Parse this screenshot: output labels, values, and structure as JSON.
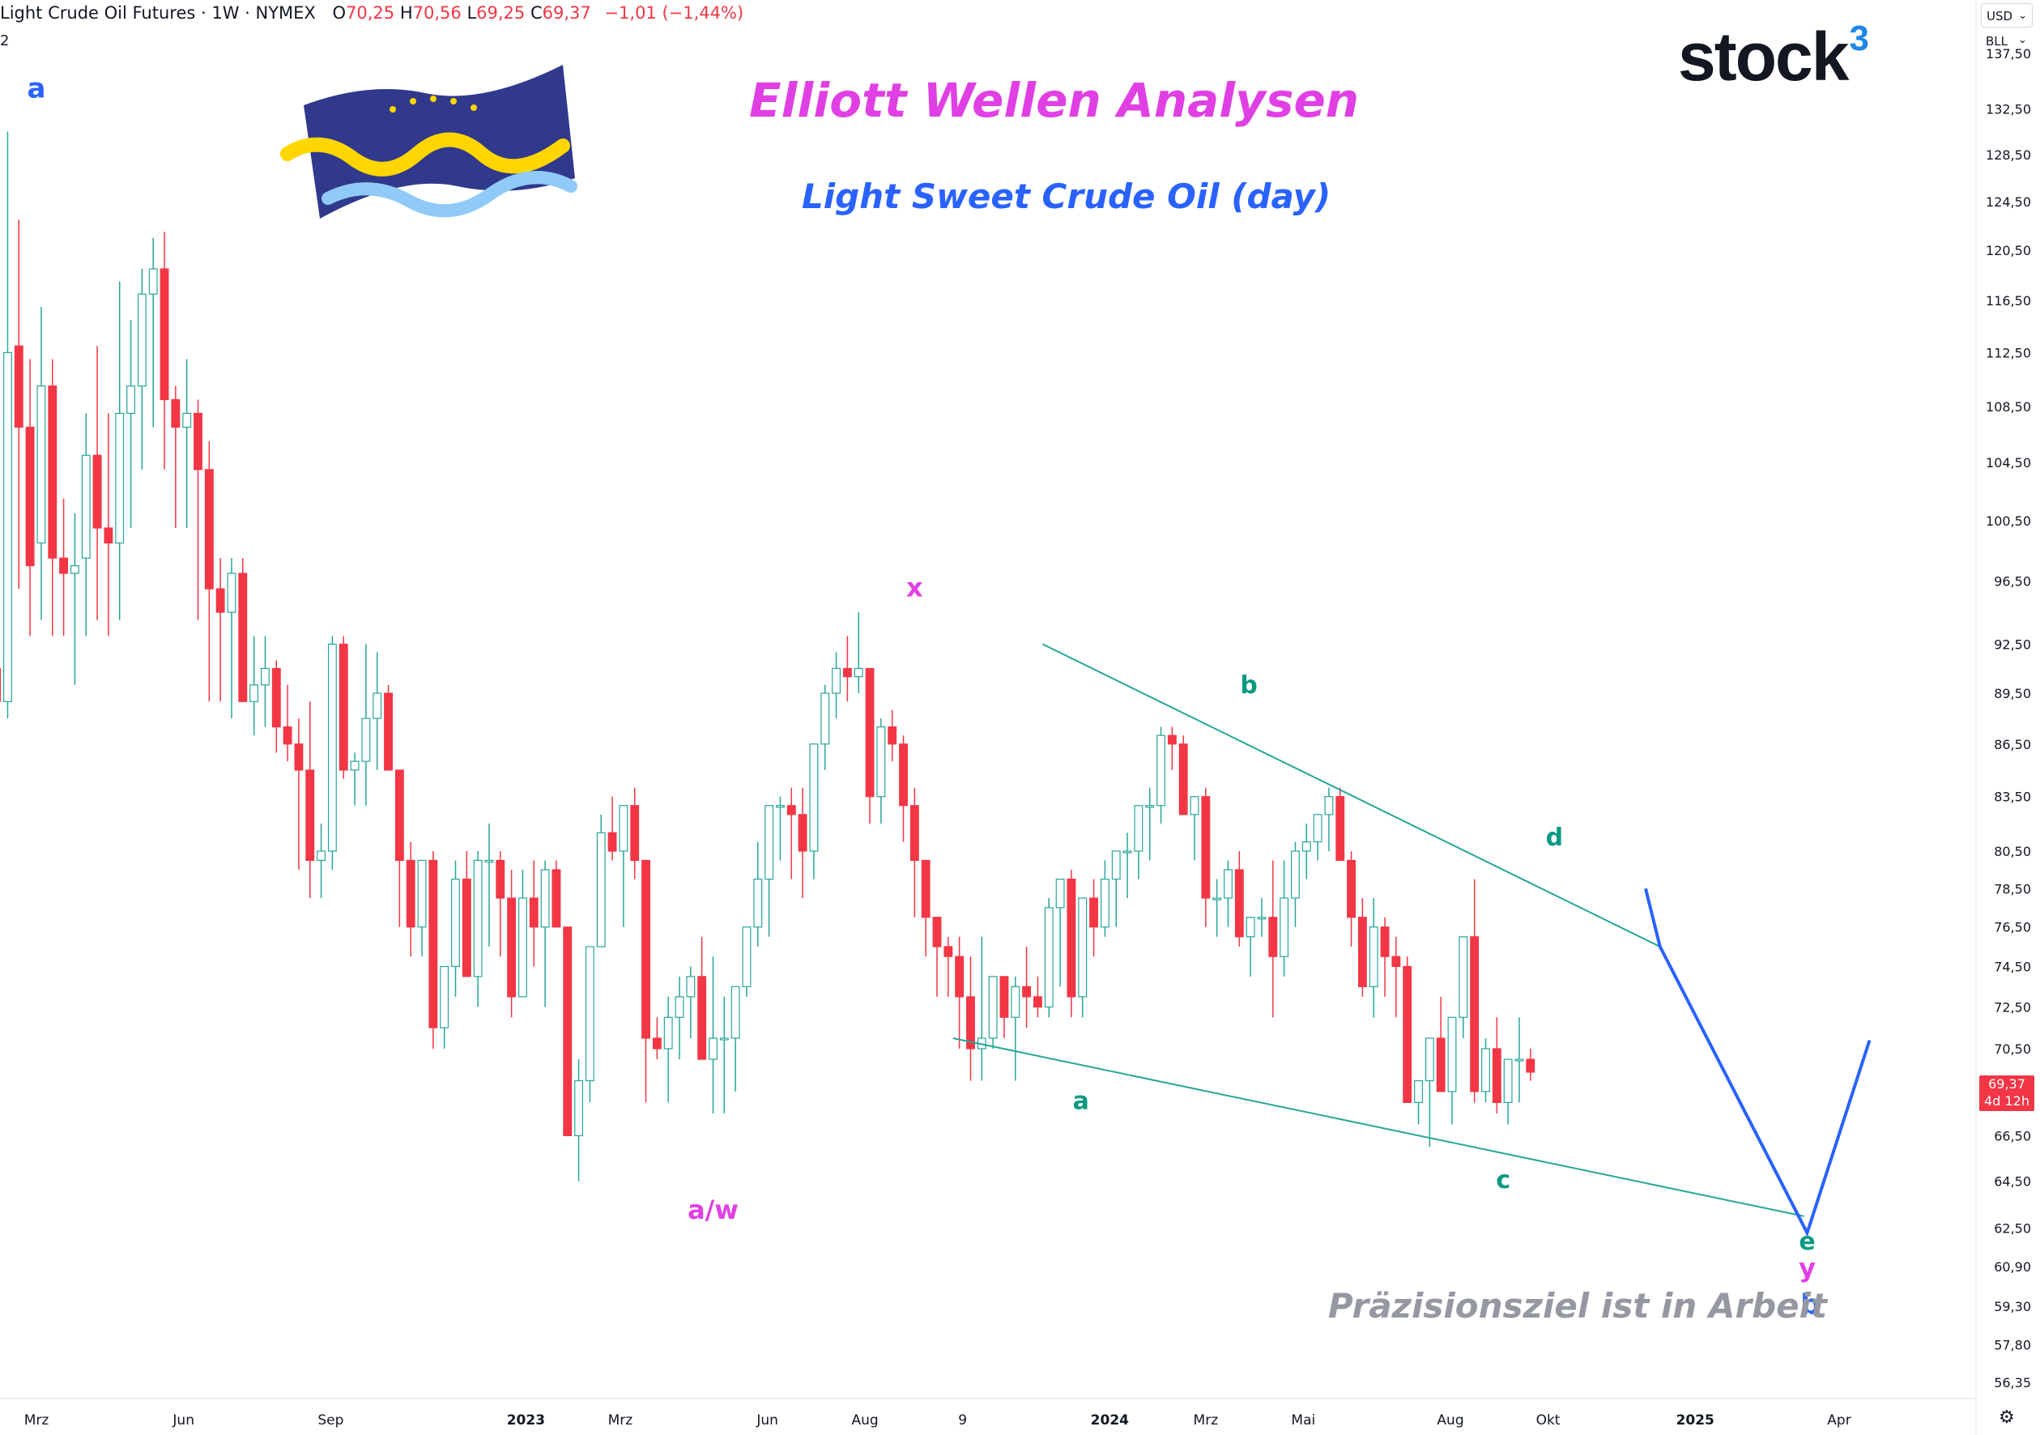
{
  "header": {
    "symbol": "Light Crude Oil Futures · 1W · NYMEX",
    "open_label": "O",
    "open": "70,25",
    "high_label": "H",
    "high": "70,56",
    "low_label": "L",
    "low": "69,25",
    "close_label": "C",
    "close": "69,37",
    "change": "−1,01 (−1,44%)",
    "row2": "2"
  },
  "titles": {
    "main": "Elliott Wellen Analysen",
    "sub": "Light Sweet Crude Oil (day)",
    "watermark": "Präzisionsziel ist in Arbeit"
  },
  "brand": {
    "name": "stock",
    "sup": "3"
  },
  "price_axis": {
    "currency": "USD",
    "unit": "BLL",
    "last_price": "69,37",
    "countdown": "4d 12h"
  },
  "colors": {
    "up": "#26a69a",
    "down": "#f23645",
    "trend": "#26a69a",
    "projection": "#2962ff",
    "pink": "#e040e3",
    "teal": "#089981"
  },
  "icons": {
    "currency_chevron": "chevron-down-icon",
    "settings": "gear-icon"
  },
  "chart_data": {
    "type": "candlestick",
    "instrument": "Light Crude Oil Futures",
    "interval": "1W",
    "exchange": "NYMEX",
    "y_scale": "log",
    "ylim": [
      55.5,
      141.0
    ],
    "y_ticks": [
      "137,50",
      "132,50",
      "128,50",
      "124,50",
      "120,50",
      "116,50",
      "112,50",
      "108,50",
      "104,50",
      "100,50",
      "96,50",
      "92,50",
      "89,50",
      "86,50",
      "83,50",
      "80,50",
      "78,50",
      "76,50",
      "74,50",
      "72,50",
      "70,50",
      "66,50",
      "64,50",
      "62,50",
      "60,90",
      "59,30",
      "57,80",
      "56,35"
    ],
    "y_tick_values": [
      137.5,
      132.5,
      128.5,
      124.5,
      120.5,
      116.5,
      112.5,
      108.5,
      104.5,
      100.5,
      96.5,
      92.5,
      89.5,
      86.5,
      83.5,
      80.5,
      78.5,
      76.5,
      74.5,
      72.5,
      70.5,
      66.5,
      64.5,
      62.5,
      60.9,
      59.3,
      57.8,
      56.35
    ],
    "x_ticks": [
      {
        "label": "Mrz",
        "date": "2022-03-01"
      },
      {
        "label": "Jun",
        "date": "2022-06-01"
      },
      {
        "label": "Sep",
        "date": "2022-09-01"
      },
      {
        "label": "2023",
        "date": "2023-01-01"
      },
      {
        "label": "Mrz",
        "date": "2023-03-01"
      },
      {
        "label": "Jun",
        "date": "2023-06-01"
      },
      {
        "label": "Aug",
        "date": "2023-08-01"
      },
      {
        "label": "9",
        "date": "2023-10-01"
      },
      {
        "label": "2024",
        "date": "2024-01-01"
      },
      {
        "label": "Mrz",
        "date": "2024-03-01"
      },
      {
        "label": "Mai",
        "date": "2024-05-01"
      },
      {
        "label": "Aug",
        "date": "2024-08-01"
      },
      {
        "label": "Okt",
        "date": "2024-10-01"
      },
      {
        "label": "2025",
        "date": "2025-01-01"
      },
      {
        "label": "Apr",
        "date": "2025-04-01"
      }
    ],
    "candles_start": "2022-02-04",
    "candles_ohlc": [
      [
        91,
        94,
        87,
        89
      ],
      [
        89,
        130.5,
        88,
        112.5
      ],
      [
        113,
        123,
        96,
        107
      ],
      [
        107,
        112,
        93,
        97.5
      ],
      [
        99,
        116,
        94,
        110
      ],
      [
        110,
        112,
        93,
        98
      ],
      [
        98,
        102,
        93,
        97
      ],
      [
        97,
        101,
        90,
        97.5
      ],
      [
        98,
        108,
        93,
        105
      ],
      [
        105,
        113,
        94,
        100
      ],
      [
        100,
        108,
        93,
        99
      ],
      [
        99,
        118,
        94,
        108
      ],
      [
        108,
        115,
        100,
        110
      ],
      [
        110,
        119,
        104,
        117
      ],
      [
        117,
        121.5,
        107,
        119
      ],
      [
        119,
        122,
        104,
        109
      ],
      [
        109,
        110,
        100,
        107
      ],
      [
        107,
        112,
        100,
        108
      ],
      [
        108,
        109,
        94,
        104
      ],
      [
        104,
        106,
        89,
        96
      ],
      [
        96,
        98,
        89,
        94.5
      ],
      [
        94.5,
        98,
        88,
        97
      ],
      [
        97,
        98,
        89,
        89
      ],
      [
        89,
        93,
        87,
        90
      ],
      [
        90,
        93,
        87.5,
        91
      ],
      [
        91,
        91.5,
        86,
        87.5
      ],
      [
        87.5,
        90,
        85.5,
        86.5
      ],
      [
        86.5,
        88,
        79.5,
        85
      ],
      [
        85,
        89,
        78,
        80
      ],
      [
        80,
        82,
        78,
        80.5
      ],
      [
        80.5,
        93,
        79.5,
        92.5
      ],
      [
        92.5,
        93,
        84.5,
        85
      ],
      [
        85,
        86,
        83,
        85.5
      ],
      [
        85.5,
        92.5,
        83,
        88
      ],
      [
        88,
        92,
        85,
        89.5
      ],
      [
        89.5,
        90,
        85,
        85
      ],
      [
        85,
        85,
        76.5,
        80
      ],
      [
        80,
        81,
        75,
        76.5
      ],
      [
        76.5,
        80,
        75,
        80
      ],
      [
        80,
        80.5,
        70.5,
        71.5
      ],
      [
        71.5,
        74,
        70.5,
        74.5
      ],
      [
        74.5,
        80,
        73,
        79
      ],
      [
        79,
        80.5,
        75,
        74
      ],
      [
        74,
        80.5,
        72.5,
        80
      ],
      [
        80,
        82,
        75.5,
        80
      ],
      [
        80,
        80.5,
        75,
        78
      ],
      [
        78,
        79.5,
        72,
        73
      ],
      [
        73,
        79.5,
        73,
        78
      ],
      [
        78,
        80,
        74.5,
        76.5
      ],
      [
        76.5,
        80,
        72.5,
        79.5
      ],
      [
        79.5,
        80,
        76.5,
        76.5
      ],
      [
        76.5,
        76.5,
        67.5,
        66.5
      ],
      [
        66.5,
        70,
        64.5,
        69
      ],
      [
        69,
        75,
        68,
        75.5
      ],
      [
        75.5,
        82.5,
        76,
        81.5
      ],
      [
        81.5,
        83.5,
        80,
        80.5
      ],
      [
        80.5,
        82.5,
        76.5,
        83
      ],
      [
        83,
        84,
        79,
        80
      ],
      [
        80,
        80,
        68,
        71
      ],
      [
        71,
        72,
        70,
        70.5
      ],
      [
        70.5,
        73,
        68,
        72
      ],
      [
        72,
        74,
        70,
        73
      ],
      [
        73,
        74.5,
        71,
        74
      ],
      [
        74,
        76,
        72,
        70
      ],
      [
        70,
        75,
        67.5,
        71
      ],
      [
        71,
        73,
        67.5,
        71
      ],
      [
        71,
        72.5,
        68.5,
        73.5
      ],
      [
        73.5,
        76,
        73,
        76.5
      ],
      [
        76.5,
        81,
        75.5,
        79
      ],
      [
        79,
        83,
        76,
        83
      ],
      [
        83,
        83.5,
        80,
        83
      ],
      [
        83,
        84,
        79,
        82.5
      ],
      [
        82.5,
        84,
        78,
        80.5
      ],
      [
        80.5,
        85.5,
        79,
        86.5
      ],
      [
        86.5,
        90,
        85,
        89.5
      ],
      [
        89.5,
        92,
        88,
        91
      ],
      [
        91,
        93,
        89,
        90.5
      ],
      [
        90.5,
        94.5,
        89.5,
        91
      ],
      [
        91,
        91,
        82,
        83.5
      ],
      [
        83.5,
        88,
        82,
        87.5
      ],
      [
        87.5,
        88.5,
        85.5,
        86.5
      ],
      [
        86.5,
        87,
        81,
        83
      ],
      [
        83,
        84,
        77,
        80
      ],
      [
        80,
        80,
        75,
        77
      ],
      [
        77,
        77,
        73,
        75.5
      ],
      [
        75.5,
        76,
        73,
        75
      ],
      [
        75,
        76,
        70.5,
        73
      ],
      [
        73,
        75,
        69,
        70.5
      ],
      [
        70.5,
        76,
        69,
        71
      ],
      [
        71,
        74,
        70.5,
        74
      ],
      [
        74,
        74,
        71,
        72
      ],
      [
        72,
        74,
        69,
        73.5
      ],
      [
        73.5,
        75.5,
        71.5,
        73
      ],
      [
        73,
        74,
        72,
        72.5
      ],
      [
        72.5,
        78,
        72,
        77.5
      ],
      [
        77.5,
        79,
        73.5,
        79
      ],
      [
        79,
        79.5,
        72,
        73
      ],
      [
        73,
        77,
        72,
        78
      ],
      [
        78,
        79,
        75,
        76.5
      ],
      [
        76.5,
        80,
        76,
        79
      ],
      [
        79,
        80.5,
        76.5,
        80.5
      ],
      [
        80.5,
        81.5,
        78,
        80.5
      ],
      [
        80.5,
        83,
        79,
        83
      ],
      [
        83,
        84,
        80,
        83
      ],
      [
        83,
        87.5,
        82,
        87
      ],
      [
        87,
        87.5,
        85,
        86.5
      ],
      [
        86.5,
        87,
        83,
        82.5
      ],
      [
        82.5,
        83,
        80,
        83.5
      ],
      [
        83.5,
        84,
        76.5,
        78
      ],
      [
        78,
        79,
        76,
        78
      ],
      [
        78,
        80,
        76.5,
        79.5
      ],
      [
        79.5,
        80.5,
        75.5,
        76
      ],
      [
        76,
        77,
        74,
        77
      ],
      [
        77,
        78,
        76,
        77
      ],
      [
        77,
        80,
        72,
        75
      ],
      [
        75,
        80,
        74,
        78
      ],
      [
        78,
        81,
        76.5,
        80.5
      ],
      [
        80.5,
        82,
        79,
        81
      ],
      [
        81,
        82.5,
        80,
        82.5
      ],
      [
        82.5,
        84,
        80.5,
        83.5
      ],
      [
        83.5,
        84,
        80,
        80
      ],
      [
        80,
        80.5,
        75.5,
        77
      ],
      [
        77,
        78,
        73,
        73.5
      ],
      [
        73.5,
        78,
        72,
        76.5
      ],
      [
        76.5,
        77,
        73,
        75
      ],
      [
        75,
        76,
        72,
        74.5
      ],
      [
        74.5,
        75,
        70,
        68
      ],
      [
        68,
        68.5,
        67,
        69
      ],
      [
        69,
        71,
        66,
        71
      ],
      [
        71,
        73,
        69,
        68.5
      ],
      [
        68.5,
        70,
        67,
        72
      ],
      [
        72,
        76,
        71,
        76
      ],
      [
        76,
        79,
        68,
        68.5
      ],
      [
        68.5,
        71,
        68,
        70.5
      ],
      [
        70.5,
        72,
        67.5,
        68
      ],
      [
        68,
        70,
        67,
        70
      ],
      [
        70,
        72,
        68,
        70
      ],
      [
        70,
        70.5,
        69,
        69.4
      ]
    ],
    "trendlines": [
      {
        "from": {
          "date": "2023-11-20",
          "price": 92.5
        },
        "to": {
          "date": "2024-12-10",
          "price": 75.5
        }
      },
      {
        "from": {
          "date": "2023-09-25",
          "price": 71.0
        },
        "to": {
          "date": "2025-03-10",
          "price": 63.0
        }
      }
    ],
    "projection": [
      {
        "date": "2024-12-01",
        "price": 78.5
      },
      {
        "date": "2024-12-10",
        "price": 75.5
      },
      {
        "date": "2025-03-12",
        "price": 62.3
      },
      {
        "date": "2025-04-20",
        "price": 70.9
      }
    ],
    "wave_labels": [
      {
        "text": "a",
        "date": "2022-03-01",
        "price": 133.5,
        "color": "#2962ff",
        "size": 34
      },
      {
        "text": "x",
        "date": "2023-09-01",
        "price": 95.5,
        "color": "#e040e3",
        "size": 32
      },
      {
        "text": "a/w",
        "date": "2023-04-28",
        "price": 62.9,
        "color": "#e040e3",
        "size": 32
      },
      {
        "text": "b",
        "date": "2024-03-28",
        "price": 89.5,
        "color": "#089981",
        "size": 30
      },
      {
        "text": "a",
        "date": "2023-12-14",
        "price": 67.7,
        "color": "#089981",
        "size": 30
      },
      {
        "text": "d",
        "date": "2024-10-05",
        "price": 80.8,
        "color": "#089981",
        "size": 30
      },
      {
        "text": "c",
        "date": "2024-09-03",
        "price": 64.2,
        "color": "#089981",
        "size": 30
      },
      {
        "text": "e",
        "date": "2025-03-12",
        "price": 61.6,
        "color": "#089981",
        "size": 30
      },
      {
        "text": "y",
        "date": "2025-03-12",
        "price": 60.5,
        "color": "#e040e3",
        "size": 32
      },
      {
        "text": "b",
        "date": "2025-03-14",
        "price": 59.0,
        "color": "#2962ff",
        "size": 34
      }
    ]
  }
}
